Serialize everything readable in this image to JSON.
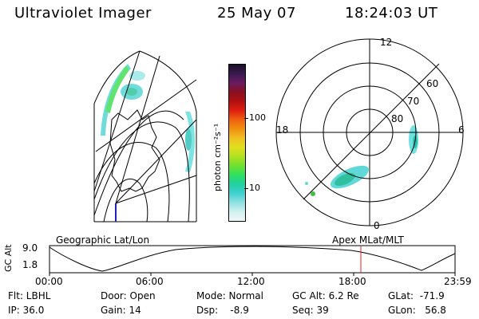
{
  "header": {
    "instrument": "Ultraviolet Imager",
    "date": "25 May 07",
    "time": "18:24:03 UT"
  },
  "colorbar": {
    "unit_label": "photon cm⁻²s⁻¹",
    "ticks": [
      "100",
      "10"
    ],
    "colors": [
      "#1a1028",
      "#3a1a50",
      "#6a1a60",
      "#8a1020",
      "#b01010",
      "#e02010",
      "#f06010",
      "#f09010",
      "#f0c020",
      "#e0e020",
      "#b0e020",
      "#70e030",
      "#30e060",
      "#20d0a0",
      "#40d0d0",
      "#90e0e0",
      "#d0f0f0",
      "#f0f8f8"
    ]
  },
  "polar_plot": {
    "lt_labels": [
      "12",
      "18",
      "6",
      "0"
    ],
    "lat_labels": [
      "60",
      "70",
      "80"
    ]
  },
  "timeline": {
    "left_title": "Geographic Lat/Lon",
    "right_title": "Apex  MLat/MLT",
    "y_axis_label": "GC Alt",
    "y_ticks": [
      "9.0",
      "1.8"
    ],
    "x_ticks": [
      "00:00",
      "06:00",
      "12:00",
      "18:00",
      "23:59"
    ],
    "marker_color": "#e02020"
  },
  "status": {
    "flt": "Flt: LBHL",
    "ip": "IP: 36.0",
    "door": "Door: Open",
    "gain": "Gain: 14",
    "mode": "Mode: Normal",
    "dsp": "Dsp:    -8.9",
    "gc_alt": "GC Alt: 6.2 Re",
    "seq": "Seq: 39",
    "glat": "GLat:  -71.9",
    "glon": "GLon:   56.8"
  }
}
